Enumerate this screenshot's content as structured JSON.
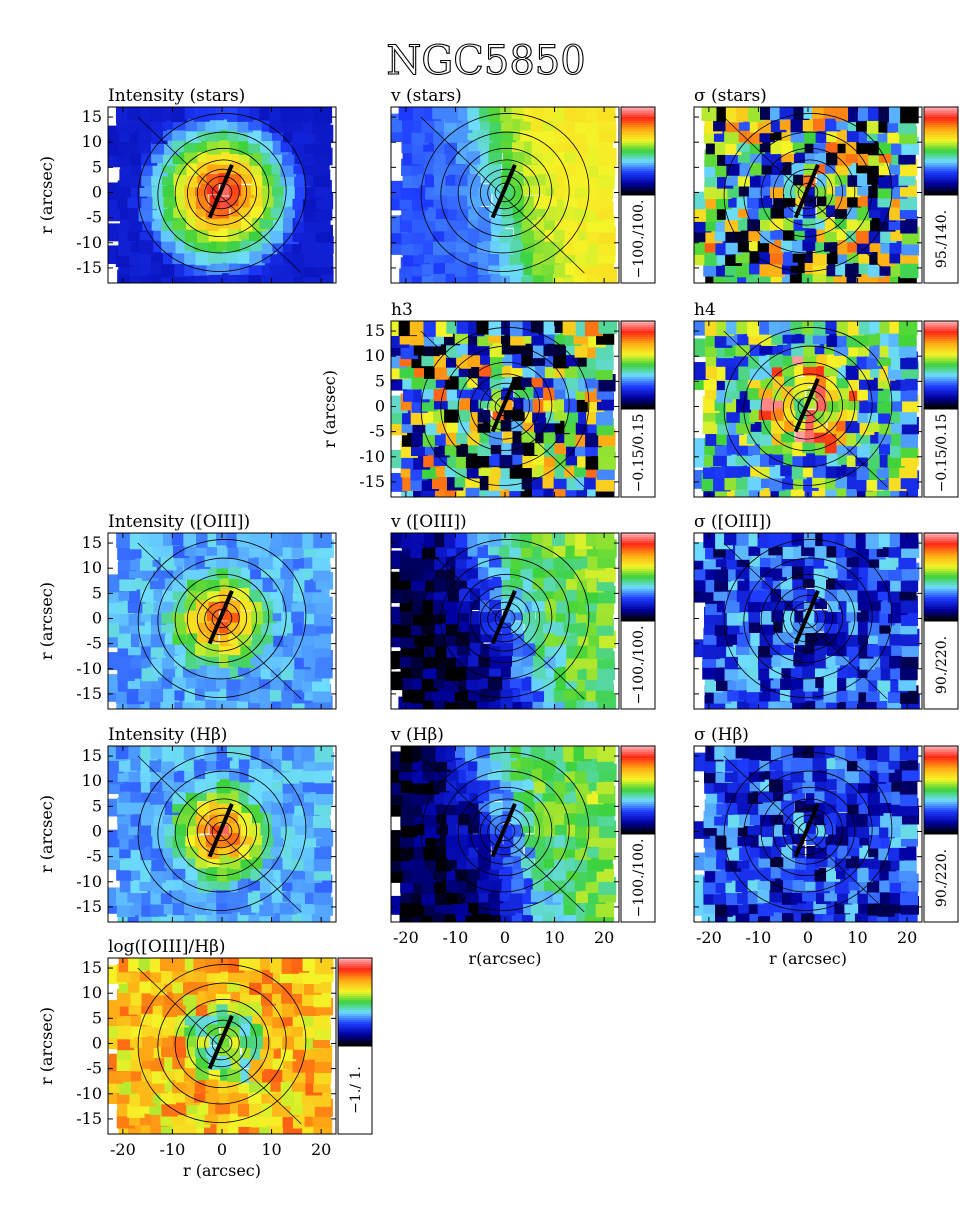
{
  "chart_data": {
    "type": "heatmap",
    "title": "NGC5850",
    "x_range": [
      -23,
      23
    ],
    "y_range": [
      -18,
      17
    ],
    "x_ticks": [
      -20,
      -10,
      0,
      10,
      20
    ],
    "y_ticks": [
      -15,
      -10,
      -5,
      0,
      5,
      10,
      15
    ],
    "xlabel": "r(arcsec)",
    "xlabel_spaced": "r (arcsec)",
    "ylabel": "r (arcsec)",
    "slit_line": {
      "from": [
        -2.5,
        -5
      ],
      "to": [
        2,
        5.5
      ]
    },
    "panels": [
      {
        "id": "intensity-stars",
        "title": "Intensity (stars)",
        "scheme": "intensity",
        "colorbar": null
      },
      {
        "id": "v-stars",
        "title": "v (stars)",
        "scheme": "velocity",
        "colorbar": "−100./100."
      },
      {
        "id": "sigma-stars",
        "title": "σ (stars)",
        "scheme": "noisy",
        "colorbar": "95./140."
      },
      {
        "id": "h3",
        "title": "h3",
        "scheme": "noisy",
        "colorbar": "−0.15/0.15"
      },
      {
        "id": "h4",
        "title": "h4",
        "scheme": "noisy-center",
        "colorbar": "−0.15/0.15"
      },
      {
        "id": "intensity-oiii",
        "title": "Intensity ([OIII])",
        "scheme": "intensity-gas",
        "colorbar": null
      },
      {
        "id": "v-oiii",
        "title": "v ([OIII])",
        "scheme": "velocity-gas",
        "colorbar": "−100./100."
      },
      {
        "id": "sigma-oiii",
        "title": "σ ([OIII])",
        "scheme": "low",
        "colorbar": "90./220."
      },
      {
        "id": "intensity-hbeta",
        "title": "Intensity (Hβ)",
        "scheme": "intensity-gas",
        "colorbar": null
      },
      {
        "id": "v-hbeta",
        "title": "v (Hβ)",
        "scheme": "velocity-gas",
        "colorbar": "−100./100."
      },
      {
        "id": "sigma-hbeta",
        "title": "σ (Hβ)",
        "scheme": "low",
        "colorbar": "90./220."
      },
      {
        "id": "log-ratio",
        "title": "log([OIII]/Hβ)",
        "scheme": "ratio",
        "colorbar": "−1./ 1."
      }
    ]
  }
}
